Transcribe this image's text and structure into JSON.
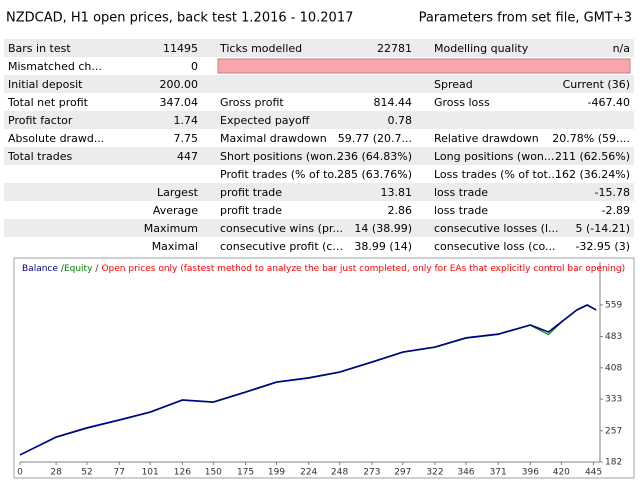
{
  "header": {
    "title": "NZDCAD,  H1 open prices, back test 1.2016 - 10.2017",
    "params": "Parameters from set file, GMT+3"
  },
  "table": {
    "rows": [
      {
        "left": [
          "Bars in test",
          "11495"
        ],
        "middle": [
          "Ticks modelled",
          "22781"
        ],
        "right": [
          "Modelling quality",
          "n/a"
        ]
      },
      {
        "left": [
          "Mismatched ch...",
          "0"
        ]
      },
      {
        "left": [
          "Initial deposit",
          "200.00"
        ],
        "right": [
          "Spread",
          "Current (36)"
        ]
      },
      {
        "left": [
          "Total net profit",
          "347.04"
        ],
        "middle": [
          "Gross profit",
          "814.44"
        ],
        "right": [
          "Gross loss",
          "-467.40"
        ]
      },
      {
        "left": [
          "Profit factor",
          "1.74"
        ],
        "middle": [
          "Expected payoff",
          "0.78"
        ]
      },
      {
        "left": [
          "Absolute drawd...",
          "7.75"
        ],
        "middle": [
          "Maximal drawdown",
          "59.77 (20.7..."
        ],
        "right": [
          "Relative drawdown",
          "20.78% (59...."
        ]
      },
      {
        "left": [
          "Total trades",
          "447"
        ],
        "middle": [
          "Short positions (won...",
          "236 (64.83%)"
        ],
        "right": [
          "Long positions (won...",
          "211 (62.56%)"
        ]
      },
      {
        "middle": [
          "Profit trades (% of to...",
          "285 (63.76%)"
        ],
        "right": [
          "Loss trades (% of tot...",
          "162 (36.24%)"
        ]
      },
      {
        "label": "Largest",
        "middle": [
          "profit trade",
          "13.81"
        ],
        "right": [
          "loss trade",
          "-15.78"
        ]
      },
      {
        "label": "Average",
        "middle": [
          "profit trade",
          "2.86"
        ],
        "right": [
          "loss trade",
          "-2.89"
        ]
      },
      {
        "label": "Maximum",
        "middle": [
          "consecutive wins (pr...",
          "14 (38.99)"
        ],
        "right": [
          "consecutive losses (l...",
          "5 (-14.21)"
        ]
      },
      {
        "label": "Maximal",
        "middle": [
          "consecutive profit (c...",
          "38.99 (14)"
        ],
        "right": [
          "consecutive loss (co...",
          "-32.95 (3)"
        ]
      }
    ]
  },
  "chart_data": {
    "type": "line",
    "legend_separator": "/",
    "note": "Open prices only (fastest method to analyze the bar just completed, only for EAs that explicitly control bar opening)",
    "note_color": "#ff0000",
    "x": [
      0,
      28,
      52,
      77,
      101,
      126,
      150,
      175,
      199,
      224,
      248,
      273,
      297,
      322,
      346,
      371,
      396,
      410,
      420,
      432,
      440,
      447
    ],
    "series": [
      {
        "name": "Balance",
        "color": "#00008b",
        "values": [
          199,
          242,
          264,
          283,
          302,
          331,
          326,
          350,
          374,
          384,
          398,
          422,
          446,
          458,
          480,
          489,
          511,
          494,
          518,
          547,
          559,
          547
        ]
      },
      {
        "name": "Equity",
        "color": "#008000",
        "values": [
          199,
          241,
          263,
          282,
          301,
          330,
          325,
          349,
          373,
          383,
          397,
          421,
          445,
          457,
          479,
          488,
          510,
          488,
          517,
          546,
          558,
          547
        ]
      }
    ],
    "xlim": [
      0,
      450
    ],
    "ylim": [
      182,
      662
    ],
    "xticks": [
      0,
      28,
      52,
      77,
      101,
      126,
      150,
      175,
      199,
      224,
      248,
      273,
      297,
      322,
      346,
      371,
      396,
      420,
      445
    ],
    "yticks": [
      182,
      257,
      333,
      408,
      483,
      559
    ]
  }
}
